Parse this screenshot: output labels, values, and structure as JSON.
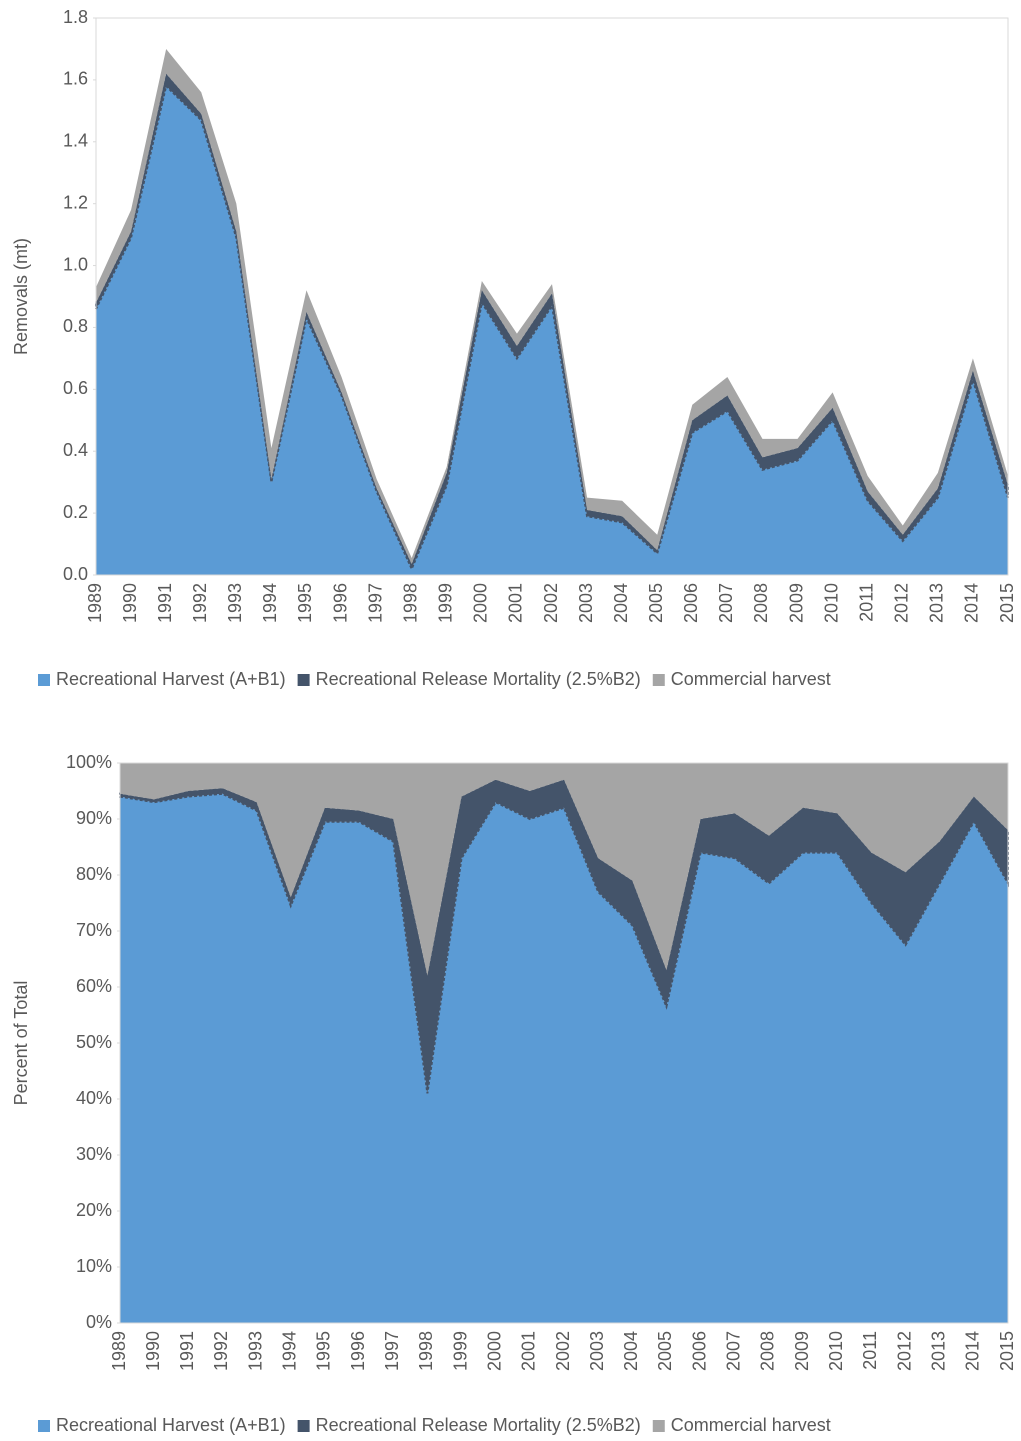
{
  "chart_data": [
    {
      "type": "area",
      "stacked": true,
      "ylabel": "Removals (mt)",
      "categories": [
        "1989",
        "1990",
        "1991",
        "1992",
        "1993",
        "1994",
        "1995",
        "1996",
        "1997",
        "1998",
        "1999",
        "2000",
        "2001",
        "2002",
        "2003",
        "2004",
        "2005",
        "2006",
        "2007",
        "2008",
        "2009",
        "2010",
        "2011",
        "2012",
        "2013",
        "2014",
        "2015"
      ],
      "series": [
        {
          "name": "Recreational Harvest (A+B1)",
          "color": "#5b9bd5",
          "values": [
            0.86,
            1.09,
            1.58,
            1.47,
            1.09,
            0.3,
            0.83,
            0.58,
            0.27,
            0.02,
            0.29,
            0.88,
            0.7,
            0.87,
            0.19,
            0.17,
            0.07,
            0.46,
            0.53,
            0.34,
            0.37,
            0.5,
            0.24,
            0.11,
            0.25,
            0.63,
            0.25
          ]
        },
        {
          "name": "Recreational Release Mortality (2.5%B2)",
          "color": "#44546a",
          "values": [
            0.02,
            0.02,
            0.04,
            0.02,
            0.02,
            0.01,
            0.02,
            0.01,
            0.01,
            0.015,
            0.04,
            0.04,
            0.04,
            0.04,
            0.02,
            0.02,
            0.01,
            0.04,
            0.05,
            0.04,
            0.04,
            0.04,
            0.03,
            0.02,
            0.03,
            0.03,
            0.04
          ]
        },
        {
          "name": "Commercial harvest",
          "color": "#a5a5a5",
          "values": [
            0.05,
            0.07,
            0.08,
            0.07,
            0.09,
            0.1,
            0.07,
            0.05,
            0.03,
            0.02,
            0.02,
            0.03,
            0.04,
            0.03,
            0.04,
            0.05,
            0.05,
            0.05,
            0.06,
            0.06,
            0.03,
            0.05,
            0.05,
            0.03,
            0.05,
            0.04,
            0.03
          ]
        }
      ],
      "ylim": [
        0,
        1.8
      ],
      "yticks": [
        {
          "value": 0,
          "label": "0.0"
        },
        0.2,
        0.4,
        0.6,
        0.8,
        {
          "value": 1,
          "label": "1.0"
        },
        1.2,
        1.4,
        1.6,
        1.8
      ],
      "grid": false,
      "legend": "bottom"
    },
    {
      "type": "area",
      "stacked": true,
      "ylabel": "Percent of Total",
      "categories": [
        "1989",
        "1990",
        "1991",
        "1992",
        "1993",
        "1994",
        "1995",
        "1996",
        "1997",
        "1998",
        "1999",
        "2000",
        "2001",
        "2002",
        "2003",
        "2004",
        "2005",
        "2006",
        "2007",
        "2008",
        "2009",
        "2010",
        "2011",
        "2012",
        "2013",
        "2014",
        "2015"
      ],
      "series": [
        {
          "name": "Recreational Harvest (A+B1)",
          "color": "#5b9bd5",
          "values": [
            94,
            93,
            94,
            94.5,
            91.5,
            74.5,
            89.5,
            89.5,
            86,
            41,
            83,
            93,
            90,
            92,
            77,
            71,
            56.5,
            84,
            83,
            78.5,
            84,
            84,
            75,
            67.5,
            78.5,
            89.5,
            78.5
          ]
        },
        {
          "name": "Recreational Release Mortality (2.5%B2)",
          "color": "#44546a",
          "values": [
            0.5,
            0.5,
            1,
            1,
            1.5,
            1.5,
            2.5,
            2,
            4,
            21,
            11,
            4,
            5,
            5,
            6,
            8,
            6.5,
            6,
            8,
            8.5,
            8,
            7,
            9,
            13,
            7.5,
            4.5,
            9.5
          ]
        },
        {
          "name": "Commercial harvest",
          "color": "#a5a5a5",
          "values": [
            5.5,
            6.5,
            5,
            4.5,
            7,
            24,
            8,
            8.5,
            10,
            38,
            6,
            3,
            5,
            3,
            17,
            21,
            37,
            10,
            9,
            13,
            8,
            9,
            16,
            19.5,
            14,
            6,
            12
          ]
        }
      ],
      "ylim": [
        0,
        100
      ],
      "yticks": [
        {
          "value": 0,
          "label": "0%"
        },
        {
          "value": 10,
          "label": "10%"
        },
        {
          "value": 20,
          "label": "20%"
        },
        {
          "value": 30,
          "label": "30%"
        },
        {
          "value": 40,
          "label": "40%"
        },
        {
          "value": 50,
          "label": "50%"
        },
        {
          "value": 60,
          "label": "60%"
        },
        {
          "value": 70,
          "label": "70%"
        },
        {
          "value": 80,
          "label": "80%"
        },
        {
          "value": 90,
          "label": "90%"
        },
        {
          "value": 100,
          "label": "100%"
        }
      ],
      "grid": false,
      "legend": "bottom"
    }
  ]
}
